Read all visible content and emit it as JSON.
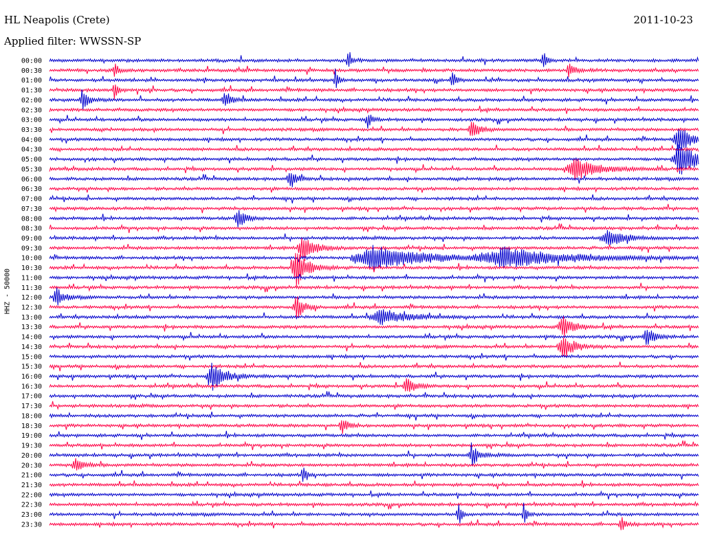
{
  "header": {
    "station": "HL Neapolis (Crete)",
    "date": "2011-10-23",
    "filter": "Applied filter: WWSSN-SP"
  },
  "chart_data": {
    "type": "line",
    "title": "HL Neapolis (Crete)",
    "ylabel": "HHZ - 50000",
    "colors": [
      "#0000cc",
      "#ff0044"
    ],
    "rows": [
      "00:00",
      "00:30",
      "01:00",
      "01:30",
      "02:00",
      "02:30",
      "03:00",
      "03:30",
      "04:00",
      "04:30",
      "05:00",
      "05:30",
      "06:00",
      "06:30",
      "07:00",
      "07:30",
      "08:00",
      "08:30",
      "09:00",
      "09:30",
      "10:00",
      "10:30",
      "11:00",
      "11:30",
      "12:00",
      "12:30",
      "13:00",
      "13:30",
      "14:00",
      "14:30",
      "15:00",
      "15:30",
      "16:00",
      "16:30",
      "17:00",
      "17:30",
      "18:00",
      "18:30",
      "19:00",
      "19:30",
      "20:00",
      "20:30",
      "21:00",
      "21:30",
      "22:00",
      "22:30",
      "23:00",
      "23:30"
    ],
    "events": [
      {
        "row": 0,
        "pos": 0.46,
        "amp": 20,
        "width": 0.004
      },
      {
        "row": 0,
        "pos": 0.76,
        "amp": 18,
        "width": 0.004
      },
      {
        "row": 1,
        "pos": 0.1,
        "amp": 14,
        "width": 0.004
      },
      {
        "row": 1,
        "pos": 0.8,
        "amp": 10,
        "width": 0.008
      },
      {
        "row": 2,
        "pos": 0.44,
        "amp": 16,
        "width": 0.004
      },
      {
        "row": 2,
        "pos": 0.62,
        "amp": 18,
        "width": 0.004
      },
      {
        "row": 3,
        "pos": 0.1,
        "amp": 16,
        "width": 0.004
      },
      {
        "row": 4,
        "pos": 0.05,
        "amp": 14,
        "width": 0.008
      },
      {
        "row": 4,
        "pos": 0.27,
        "amp": 12,
        "width": 0.008
      },
      {
        "row": 6,
        "pos": 0.49,
        "amp": 12,
        "width": 0.006
      },
      {
        "row": 7,
        "pos": 0.65,
        "amp": 14,
        "width": 0.01
      },
      {
        "row": 8,
        "pos": 0.97,
        "amp": 22,
        "width": 0.016
      },
      {
        "row": 10,
        "pos": 0.97,
        "amp": 26,
        "width": 0.02
      },
      {
        "row": 11,
        "pos": 0.81,
        "amp": 16,
        "width": 0.03
      },
      {
        "row": 12,
        "pos": 0.37,
        "amp": 16,
        "width": 0.008
      },
      {
        "row": 16,
        "pos": 0.29,
        "amp": 14,
        "width": 0.01
      },
      {
        "row": 18,
        "pos": 0.86,
        "amp": 14,
        "width": 0.02
      },
      {
        "row": 19,
        "pos": 0.39,
        "amp": 22,
        "width": 0.014
      },
      {
        "row": 20,
        "pos": 0.5,
        "amp": 18,
        "width": 0.06
      },
      {
        "row": 20,
        "pos": 0.7,
        "amp": 14,
        "width": 0.08
      },
      {
        "row": 21,
        "pos": 0.38,
        "amp": 30,
        "width": 0.014
      },
      {
        "row": 24,
        "pos": 0.01,
        "amp": 14,
        "width": 0.01
      },
      {
        "row": 25,
        "pos": 0.38,
        "amp": 18,
        "width": 0.01
      },
      {
        "row": 26,
        "pos": 0.51,
        "amp": 12,
        "width": 0.03
      },
      {
        "row": 27,
        "pos": 0.79,
        "amp": 16,
        "width": 0.014
      },
      {
        "row": 28,
        "pos": 0.92,
        "amp": 14,
        "width": 0.01
      },
      {
        "row": 29,
        "pos": 0.79,
        "amp": 20,
        "width": 0.014
      },
      {
        "row": 32,
        "pos": 0.25,
        "amp": 24,
        "width": 0.016
      },
      {
        "row": 33,
        "pos": 0.55,
        "amp": 14,
        "width": 0.01
      },
      {
        "row": 37,
        "pos": 0.45,
        "amp": 12,
        "width": 0.008
      },
      {
        "row": 40,
        "pos": 0.65,
        "amp": 18,
        "width": 0.008
      },
      {
        "row": 41,
        "pos": 0.04,
        "amp": 12,
        "width": 0.01
      },
      {
        "row": 42,
        "pos": 0.39,
        "amp": 16,
        "width": 0.004
      },
      {
        "row": 46,
        "pos": 0.63,
        "amp": 18,
        "width": 0.004
      },
      {
        "row": 46,
        "pos": 0.73,
        "amp": 18,
        "width": 0.004
      },
      {
        "row": 47,
        "pos": 0.88,
        "amp": 12,
        "width": 0.006
      }
    ]
  }
}
